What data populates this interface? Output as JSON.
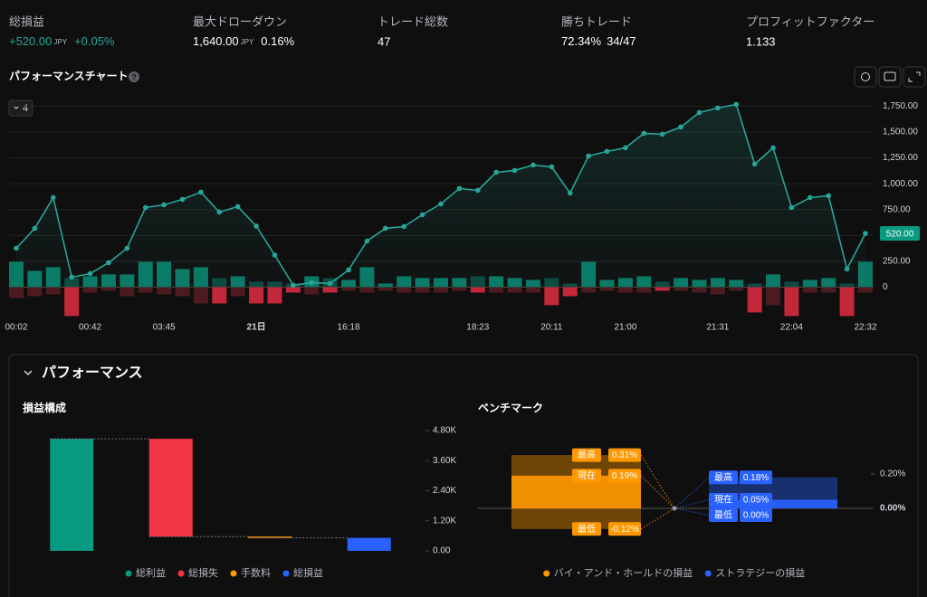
{
  "stats": [
    {
      "label": "総損益",
      "value": "+520.00",
      "unit": "JPY",
      "extra": "+0.05%"
    },
    {
      "label": "最大ドローダウン",
      "value": "1,640.00",
      "unit": "JPY",
      "extra": "0.16%"
    },
    {
      "label": "トレード総数",
      "value": "47"
    },
    {
      "label": "勝ちトレード",
      "value": "72.34%",
      "extra": "34/47"
    },
    {
      "label": "プロフィットファクター",
      "value": "1.133"
    }
  ],
  "chart_title": "パフォーマンスチャート",
  "interval": "4",
  "panel_title": "パフォーマンス",
  "chart_data": [
    {
      "type": "line",
      "categories": [
        "00:02",
        null,
        null,
        null,
        "00:42",
        null,
        null,
        null,
        "03:45",
        null,
        null,
        null,
        null,
        "21日",
        null,
        null,
        null,
        null,
        "16:18",
        null,
        null,
        null,
        null,
        null,
        null,
        "18:23",
        null,
        null,
        null,
        "20:11",
        null,
        null,
        null,
        "21:00",
        null,
        null,
        null,
        null,
        "21:31",
        null,
        null,
        null,
        "22:04",
        null,
        null,
        null,
        "22:32"
      ],
      "values": [
        376,
        569,
        866,
        96,
        131,
        236,
        376,
        770,
        796,
        849,
        919,
        726,
        779,
        590,
        310,
        18,
        44,
        35,
        166,
        446,
        569,
        586,
        700,
        805,
        954,
        936,
        1111,
        1129,
        1181,
        1164,
        910,
        1269,
        1313,
        1348,
        1488,
        1479,
        1549,
        1689,
        1733,
        1768,
        1190,
        1348,
        770,
        866,
        884,
        175,
        520
      ],
      "bars_up": [
        245,
        158,
        193,
        88,
        105,
        123,
        123,
        245,
        245,
        175,
        193,
        88,
        105,
        53,
        53,
        35,
        105,
        88,
        70,
        193,
        35,
        105,
        88,
        88,
        88,
        105,
        105,
        88,
        70,
        88,
        35,
        245,
        70,
        88,
        105,
        53,
        88,
        70,
        88,
        70,
        35,
        123,
        53,
        70,
        88,
        35,
        245
      ],
      "bars_down": [
        -105,
        -88,
        -70,
        -280,
        -53,
        -35,
        -88,
        -53,
        -70,
        -88,
        -158,
        -158,
        -88,
        -158,
        -158,
        -53,
        -70,
        -53,
        -35,
        -53,
        -35,
        -53,
        -53,
        -53,
        -35,
        -53,
        -53,
        -53,
        -53,
        -175,
        -88,
        -53,
        -35,
        -53,
        -53,
        -35,
        -35,
        -53,
        -70,
        -35,
        -245,
        -175,
        -280,
        -53,
        -53,
        -280,
        -53
      ],
      "color": "#26a69a",
      "value_labels": {
        "46": "520.00"
      },
      "ylim": [
        -250,
        1850
      ],
      "yticks": [
        0,
        {
          "value": 250,
          "label": "250.00"
        },
        {
          "value": 500,
          "label": "500.00"
        },
        {
          "value": 750,
          "label": "750.00"
        },
        {
          "value": 1000,
          "label": "1,000.00"
        },
        {
          "value": 1250,
          "label": "1,250.00"
        },
        {
          "value": 1500,
          "label": "1,500.00"
        },
        {
          "value": 1750,
          "label": "1,750.00"
        }
      ],
      "grid": true
    },
    {
      "type": "waterfall",
      "title": "損益構成",
      "categories": [
        "総利益",
        "総損失",
        "手数料",
        "総損益"
      ],
      "values": [
        4470,
        -3900,
        -50,
        520
      ],
      "totals": [
        false,
        false,
        false,
        true
      ],
      "colors": [
        "#089981",
        "#f23645",
        "#ff9800",
        "#2962ff"
      ],
      "ylim": [
        0,
        4800
      ],
      "yticks": [
        {
          "value": 0,
          "label": "0.00"
        },
        {
          "value": 1200,
          "label": "1.20K"
        },
        {
          "value": 2400,
          "label": "2.40K"
        },
        {
          "value": 3600,
          "label": "3.60K"
        },
        {
          "value": 4800,
          "label": "4.80K"
        }
      ]
    },
    {
      "type": "benchmark",
      "title": "ベンチマーク",
      "categories": [
        "最高",
        "現在",
        "最低"
      ],
      "series": [
        {
          "name": "バイ・アンド・ホールドの損益",
          "color": "#ff9800",
          "values": [
            0.31,
            0.19,
            -0.12
          ],
          "value_labels": [
            "0.31%",
            "0.19%",
            "-0.12%"
          ]
        },
        {
          "name": "ストラテジーの損益",
          "color": "#2962ff",
          "values": [
            0.18,
            0.05,
            0.0
          ],
          "value_labels": [
            "0.18%",
            "0.05%",
            "0.00%"
          ]
        }
      ],
      "ylim": [
        -0.2,
        0.4
      ],
      "yticks": [
        {
          "value": 0,
          "label": "0.00%"
        },
        {
          "value": 0.2,
          "label": "0.20%"
        }
      ]
    }
  ]
}
